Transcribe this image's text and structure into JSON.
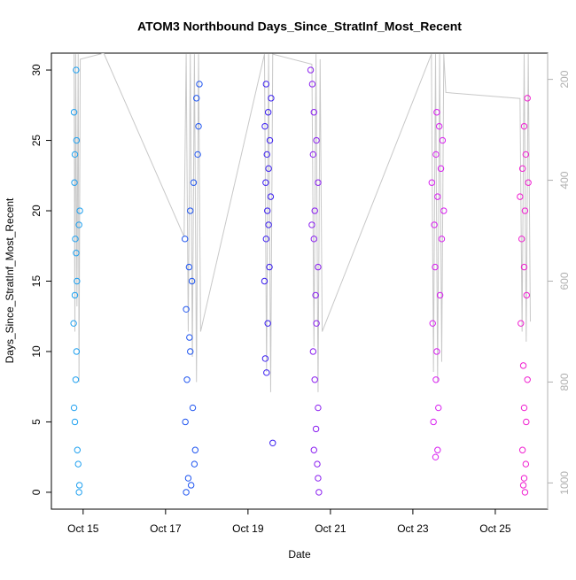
{
  "chart_data": {
    "type": "scatter",
    "title": "ATOM3 Northbound Days_Since_StratInf_Most_Recent",
    "x_label": "Date",
    "y_label": "Days_Since_StratInf_Most_Recent",
    "xlim": [
      14.23,
      26.27
    ],
    "xticks": [
      {
        "value": 15,
        "label": "Oct 15"
      },
      {
        "value": 17,
        "label": "Oct 17"
      },
      {
        "value": 19,
        "label": "Oct 19"
      },
      {
        "value": 21,
        "label": "Oct 21"
      },
      {
        "value": 23,
        "label": "Oct 23"
      },
      {
        "value": 25,
        "label": "Oct 25"
      }
    ],
    "ylim": [
      -1.2,
      31.2
    ],
    "yticks": [
      0,
      5,
      10,
      15,
      20,
      25,
      30
    ],
    "y2lim": [
      1052,
      148
    ],
    "y2ticks": [
      200,
      400,
      600,
      800,
      1000
    ],
    "y2_color": "#b0b0b0",
    "series": [
      {
        "color": "#1ea0f0",
        "x": [
          14.9,
          14.91,
          14.88,
          14.86,
          14.8,
          14.78,
          14.82,
          14.84,
          14.77,
          14.8,
          14.85,
          14.83,
          14.81,
          14.9,
          14.92,
          14.79,
          14.8,
          14.84,
          14.78,
          14.83
        ],
        "values": [
          0,
          0.5,
          2,
          3,
          5,
          6,
          8,
          10,
          12,
          14,
          15,
          17,
          18,
          19,
          20,
          22,
          24,
          25,
          27,
          30
        ]
      },
      {
        "color": "#1f55f0",
        "x": [
          17.5,
          17.62,
          17.55,
          17.7,
          17.72,
          17.48,
          17.66,
          17.52,
          17.6,
          17.58,
          17.5,
          17.64,
          17.57,
          17.47,
          17.6,
          17.68,
          17.78,
          17.8,
          17.75,
          17.82
        ],
        "values": [
          0,
          0.5,
          1,
          2,
          3,
          5,
          6,
          8,
          10,
          11,
          13,
          15,
          16,
          18,
          20,
          22,
          24,
          26,
          28,
          29
        ]
      },
      {
        "color": "#3a1ef0",
        "x": [
          19.6,
          19.45,
          19.42,
          19.48,
          19.4,
          19.52,
          19.44,
          19.5,
          19.47,
          19.55,
          19.43,
          19.5,
          19.46,
          19.53,
          19.41,
          19.49,
          19.56,
          19.44
        ],
        "values": [
          3.5,
          8.5,
          9.5,
          12,
          15,
          16,
          18,
          19,
          20,
          21,
          22,
          23,
          24,
          25,
          26,
          27,
          28,
          29
        ]
      },
      {
        "color": "#8a1ef0",
        "x": [
          20.72,
          20.7,
          20.68,
          20.6,
          20.65,
          20.7,
          20.62,
          20.58,
          20.66,
          20.64,
          20.7,
          20.6,
          20.55,
          20.62,
          20.7,
          20.58,
          20.66,
          20.6,
          20.56,
          20.52
        ],
        "values": [
          0,
          1,
          2,
          3,
          4.5,
          6,
          8,
          10,
          12,
          14,
          16,
          18,
          19,
          20,
          22,
          24,
          25,
          27,
          29,
          30
        ]
      },
      {
        "color": "#d81ef0",
        "x": [
          23.55,
          23.6,
          23.5,
          23.62,
          23.56,
          23.58,
          23.48,
          23.66,
          23.54,
          23.7,
          23.52,
          23.75,
          23.6,
          23.46,
          23.68,
          23.56,
          23.72,
          23.64,
          23.58
        ],
        "values": [
          2.5,
          3,
          5,
          6,
          8,
          10,
          12,
          14,
          16,
          18,
          19,
          20,
          21,
          22,
          23,
          24,
          25,
          26,
          27
        ]
      },
      {
        "color": "#f01ed0",
        "x": [
          25.72,
          25.68,
          25.7,
          25.74,
          25.66,
          25.75,
          25.7,
          25.78,
          25.68,
          25.62,
          25.76,
          25.7,
          25.64,
          25.72,
          25.6,
          25.8,
          25.66,
          25.74,
          25.7,
          25.78
        ],
        "values": [
          0,
          0.5,
          1,
          2,
          3,
          5,
          6,
          8,
          9,
          12,
          14,
          16,
          18,
          20,
          21,
          22,
          23,
          24,
          26,
          28
        ]
      },
      {
        "type": "line",
        "axis": "y2",
        "color": "#c8c8c8",
        "x": [
          14.78,
          14.8,
          14.82,
          14.85,
          14.88,
          14.9,
          14.93,
          15.5,
          17.45,
          17.5,
          17.55,
          17.6,
          17.65,
          17.7,
          17.75,
          17.8,
          17.85,
          19.4,
          19.45,
          19.5,
          19.55,
          19.6,
          20.55,
          20.6,
          20.65,
          20.7,
          20.75,
          20.8,
          23.45,
          23.5,
          23.55,
          23.6,
          23.65,
          23.7,
          23.75,
          23.8,
          25.6,
          25.65,
          25.7,
          25.75,
          25.8,
          25.85
        ],
        "values": [
          150,
          700,
          150,
          650,
          150,
          800,
          160,
          148,
          512,
          150,
          700,
          150,
          750,
          150,
          800,
          150,
          700,
          150,
          780,
          150,
          820,
          150,
          170,
          730,
          150,
          820,
          160,
          700,
          150,
          780,
          150,
          800,
          150,
          760,
          150,
          226,
          238,
          700,
          150,
          720,
          150,
          680
        ]
      }
    ]
  }
}
